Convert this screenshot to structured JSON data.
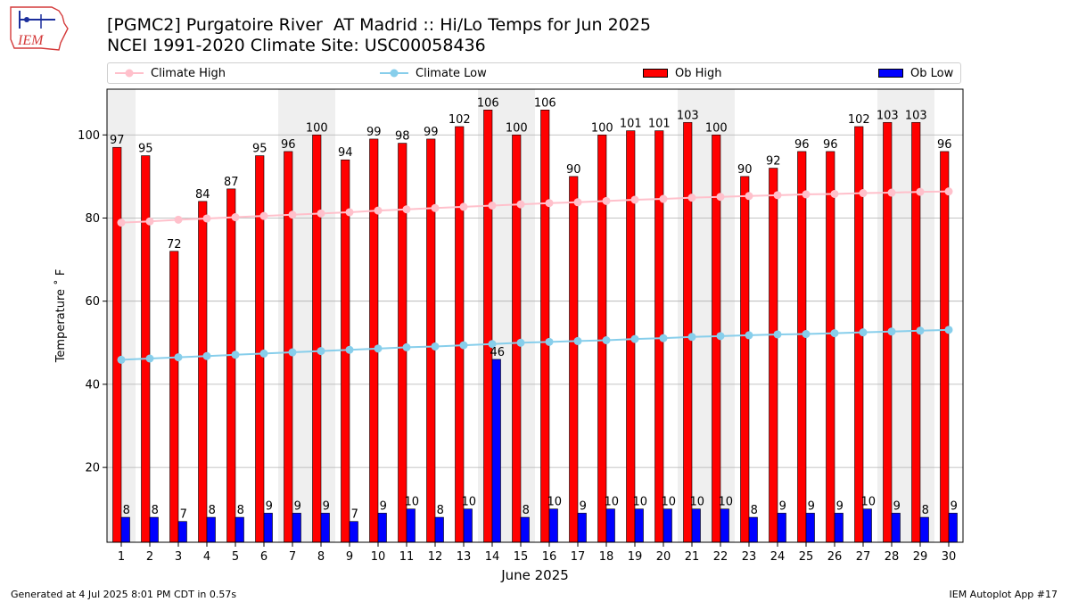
{
  "header": {
    "title_line1": "[PGMC2] Purgatoire River  AT Madrid :: Hi/Lo Temps for Jun 2025",
    "title_line2": "NCEI 1991-2020 Climate Site: USC00058436",
    "logo_text": "IEM"
  },
  "footer": {
    "generated": "Generated at 4 Jul 2025 8:01 PM CDT in 0.57s",
    "app": "IEM Autoplot App #17"
  },
  "legend": {
    "climate_high": "Climate High",
    "climate_low": "Climate Low",
    "ob_high": "Ob High",
    "ob_low": "Ob Low"
  },
  "colors": {
    "ob_high": "#ff0000",
    "ob_low": "#0000ff",
    "climate_high": "#ffc0cb",
    "climate_low": "#87ceeb",
    "weekend_shade": "#efefef",
    "grid": "#b0b0b0"
  },
  "chart_data": {
    "type": "bar",
    "title": "[PGMC2] Purgatoire River  AT Madrid :: Hi/Lo Temps for Jun 2025",
    "subtitle": "NCEI 1991-2020 Climate Site: USC00058436",
    "xlabel": "June 2025",
    "ylabel": "Temperature ˚ F",
    "ylim": [
      2,
      111
    ],
    "yticks": [
      20,
      40,
      60,
      80,
      100
    ],
    "grid": true,
    "legend_position": "top",
    "categories": [
      1,
      2,
      3,
      4,
      5,
      6,
      7,
      8,
      9,
      10,
      11,
      12,
      13,
      14,
      15,
      16,
      17,
      18,
      19,
      20,
      21,
      22,
      23,
      24,
      25,
      26,
      27,
      28,
      29,
      30
    ],
    "shaded_days": [
      1,
      7,
      8,
      14,
      15,
      21,
      22,
      28,
      29
    ],
    "series": [
      {
        "name": "Ob High",
        "kind": "bar",
        "values": [
          97,
          95,
          72,
          84,
          87,
          95,
          96,
          100,
          94,
          99,
          98,
          99,
          102,
          106,
          100,
          106,
          90,
          100,
          101,
          101,
          103,
          100,
          90,
          92,
          96,
          96,
          102,
          103,
          103,
          96
        ]
      },
      {
        "name": "Ob Low",
        "kind": "bar",
        "values": [
          8,
          8,
          7,
          8,
          8,
          9,
          9,
          9,
          7,
          9,
          10,
          8,
          10,
          46,
          8,
          10,
          9,
          10,
          10,
          10,
          10,
          10,
          8,
          9,
          9,
          9,
          10,
          9,
          8,
          9
        ]
      },
      {
        "name": "Climate High",
        "kind": "line",
        "values": [
          78.9,
          79.2,
          79.6,
          79.9,
          80.2,
          80.5,
          80.8,
          81.1,
          81.4,
          81.8,
          82.1,
          82.4,
          82.7,
          83.0,
          83.3,
          83.6,
          83.8,
          84.1,
          84.4,
          84.6,
          84.9,
          85.1,
          85.3,
          85.5,
          85.7,
          85.8,
          86.0,
          86.1,
          86.3,
          86.4
        ]
      },
      {
        "name": "Climate Low",
        "kind": "line",
        "values": [
          45.9,
          46.2,
          46.5,
          46.8,
          47.1,
          47.4,
          47.7,
          48.0,
          48.3,
          48.6,
          48.9,
          49.1,
          49.4,
          49.7,
          50.0,
          50.2,
          50.4,
          50.6,
          50.9,
          51.1,
          51.4,
          51.6,
          51.8,
          52.0,
          52.1,
          52.3,
          52.5,
          52.7,
          52.9,
          53.1
        ]
      }
    ]
  }
}
